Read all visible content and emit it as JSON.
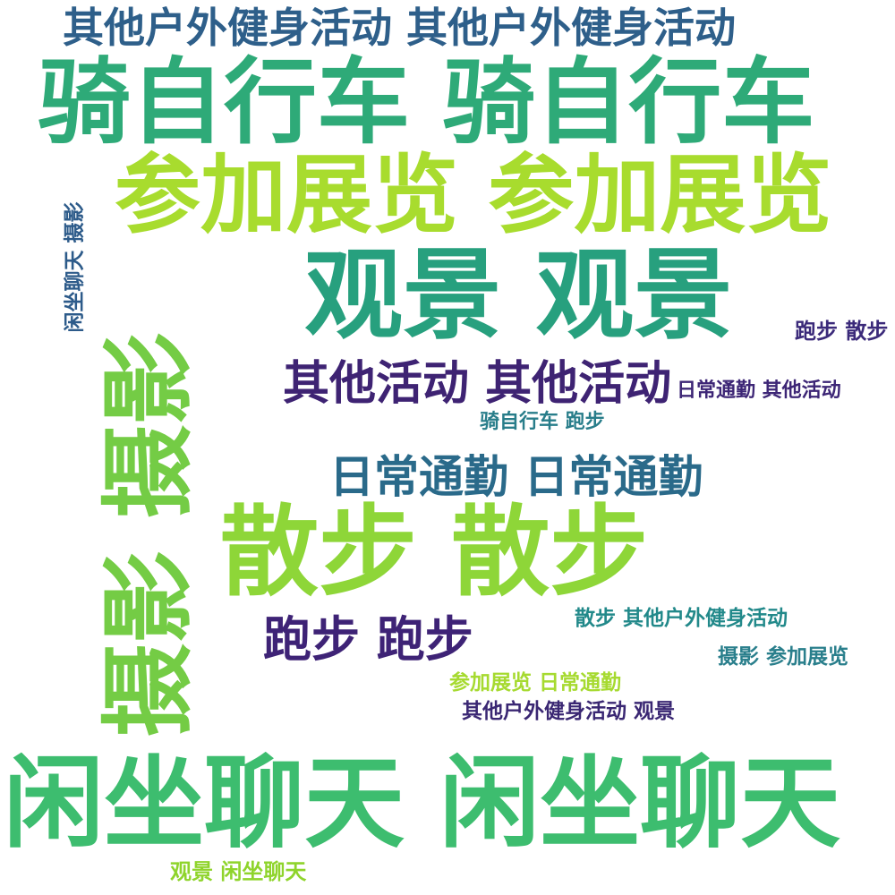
{
  "words": [
    {
      "text": "其他户外健身活动 其他户外健身活动",
      "color": "#2e5f8a"
    },
    {
      "text": "骑自行车 骑自行车",
      "color": "#2eaa78"
    },
    {
      "text": "参加展览 参加展览",
      "color": "#a8dc2e"
    },
    {
      "text": "观景 观景",
      "color": "#27a07e"
    },
    {
      "text": "跑步 散步",
      "color": "#3b2a7a"
    },
    {
      "text": "其他活动 其他活动",
      "color": "#3e2373"
    },
    {
      "text": "日常通勤 其他活动",
      "color": "#3d2676"
    },
    {
      "text": "骑自行车 跑步",
      "color": "#287d8a"
    },
    {
      "text": "日常通勤 日常通勤",
      "color": "#2a6a8a"
    },
    {
      "text": "散步 散步",
      "color": "#8ed638"
    },
    {
      "text": "跑步 跑步",
      "color": "#3e2376"
    },
    {
      "text": "散步 其他户外健身活动",
      "color": "#22898a"
    },
    {
      "text": "摄影 参加展览",
      "color": "#2a7f8c"
    },
    {
      "text": "参加展览 日常通勤",
      "color": "#a6da30"
    },
    {
      "text": "其他户外健身活动 观景",
      "color": "#3a2773"
    },
    {
      "text": "闲坐聊天 闲坐聊天",
      "color": "#3dbd6f"
    },
    {
      "text": "观景 闲坐聊天",
      "color": "#8fd42c"
    },
    {
      "text": "闲坐聊天 摄影",
      "color": "#2d5b8a"
    },
    {
      "text": "摄影 摄影",
      "color": "#74cc45"
    }
  ]
}
